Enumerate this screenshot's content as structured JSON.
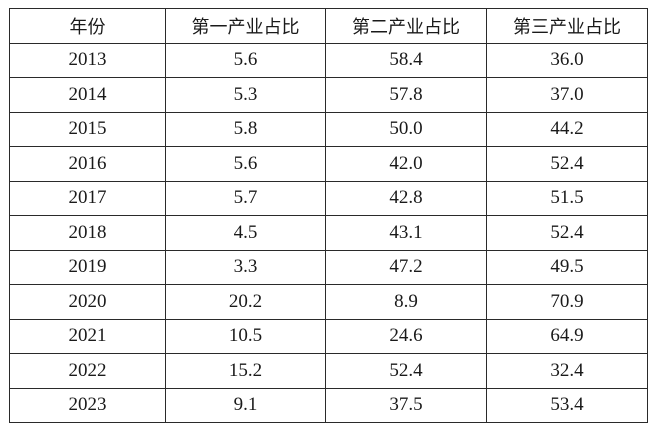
{
  "table": {
    "headers": [
      "年份",
      "第一产业占比",
      "第二产业占比",
      "第三产业占比"
    ],
    "rows": [
      [
        "2013",
        "5.6",
        "58.4",
        "36.0"
      ],
      [
        "2014",
        "5.3",
        "57.8",
        "37.0"
      ],
      [
        "2015",
        "5.8",
        "50.0",
        "44.2"
      ],
      [
        "2016",
        "5.6",
        "42.0",
        "52.4"
      ],
      [
        "2017",
        "5.7",
        "42.8",
        "51.5"
      ],
      [
        "2018",
        "4.5",
        "43.1",
        "52.4"
      ],
      [
        "2019",
        "3.3",
        "47.2",
        "49.5"
      ],
      [
        "2020",
        "20.2",
        "8.9",
        "70.9"
      ],
      [
        "2021",
        "10.5",
        "24.6",
        "64.9"
      ],
      [
        "2022",
        "15.2",
        "52.4",
        "32.4"
      ],
      [
        "2023",
        "9.1",
        "37.5",
        "53.4"
      ]
    ]
  }
}
